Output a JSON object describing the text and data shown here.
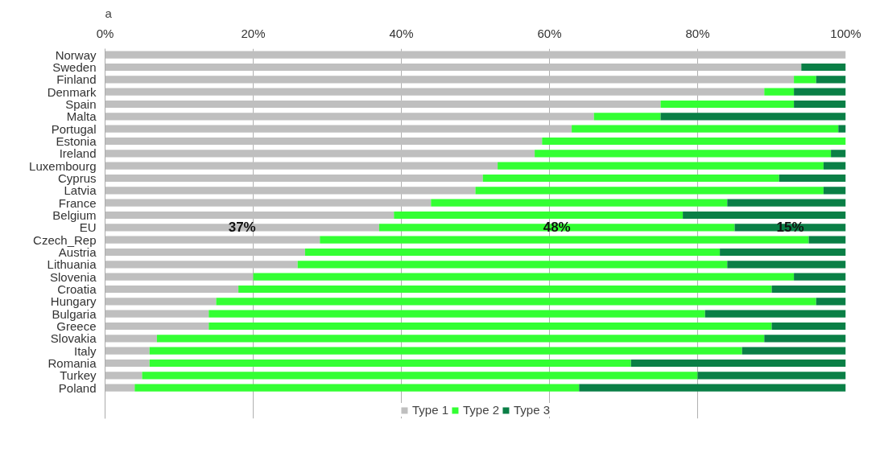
{
  "chart_data": {
    "type": "bar",
    "orientation": "horizontal",
    "stacked": true,
    "annotations": [
      "a"
    ],
    "categories": [
      "Norway",
      "Sweden",
      "Finland",
      "Denmark",
      "Spain",
      "Malta",
      "Portugal",
      "Estonia",
      "Ireland",
      "Luxembourg",
      "Cyprus",
      "Latvia",
      "France",
      "Belgium",
      "EU",
      "Czech_Rep",
      "Austria",
      "Lithuania",
      "Slovenia",
      "Croatia",
      "Hungary",
      "Bulgaria",
      "Greece",
      "Slovakia",
      "Italy",
      "Romania",
      "Turkey",
      "Poland"
    ],
    "series": [
      {
        "name": "Type 1",
        "color": "#bfbfbf",
        "values": [
          100,
          94,
          93,
          89,
          75,
          66,
          63,
          59,
          58,
          53,
          51,
          50,
          44,
          39,
          37,
          29,
          27,
          26,
          20,
          18,
          15,
          14,
          14,
          7,
          6,
          6,
          5,
          4
        ],
        "value_labels": [
          null,
          null,
          null,
          null,
          null,
          null,
          null,
          null,
          null,
          null,
          null,
          null,
          null,
          null,
          "37%",
          null,
          null,
          null,
          null,
          null,
          null,
          null,
          null,
          null,
          null,
          null,
          null,
          null
        ]
      },
      {
        "name": "Type 2",
        "color": "#33ff33",
        "values": [
          0,
          0,
          3,
          4,
          18,
          9,
          36,
          41,
          40,
          44,
          40,
          47,
          40,
          39,
          48,
          66,
          56,
          58,
          73,
          72,
          81,
          67,
          76,
          82,
          80,
          65,
          75,
          60
        ],
        "value_labels": [
          null,
          null,
          null,
          null,
          null,
          null,
          null,
          null,
          null,
          null,
          null,
          null,
          null,
          null,
          "48%",
          null,
          null,
          null,
          null,
          null,
          null,
          null,
          null,
          null,
          null,
          null,
          null,
          null
        ]
      },
      {
        "name": "Type 3",
        "color": "#0a7f46",
        "values": [
          0,
          6,
          4,
          7,
          7,
          25,
          1,
          0,
          2,
          3,
          9,
          3,
          16,
          22,
          15,
          5,
          17,
          16,
          7,
          10,
          4,
          19,
          10,
          11,
          14,
          29,
          20,
          36
        ],
        "value_labels": [
          null,
          null,
          null,
          null,
          null,
          null,
          null,
          null,
          null,
          null,
          null,
          null,
          null,
          null,
          "15%",
          null,
          null,
          null,
          null,
          null,
          null,
          null,
          null,
          null,
          null,
          null,
          null,
          null
        ]
      }
    ],
    "xlim": [
      0,
      100
    ],
    "xticks": [
      {
        "value": 0,
        "label": "0%"
      },
      {
        "value": 20,
        "label": "20%"
      },
      {
        "value": 40,
        "label": "40%"
      },
      {
        "value": 60,
        "label": "60%"
      },
      {
        "value": 80,
        "label": "80%"
      },
      {
        "value": 100,
        "label": "100%"
      }
    ],
    "grid": "x",
    "legend": "bottom"
  }
}
